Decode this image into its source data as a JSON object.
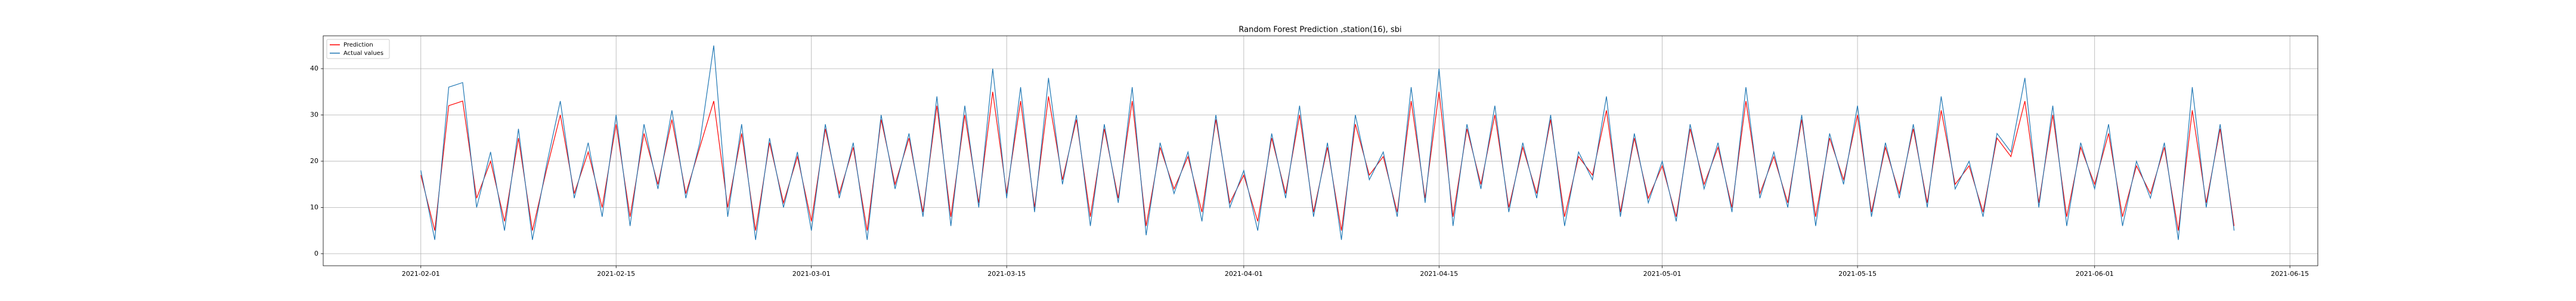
{
  "chart_data": {
    "type": "line",
    "title": "Random Forest Prediction ,station(16), sbi",
    "x": [
      "2021-02-01",
      "2021-02-02",
      "2021-02-03",
      "2021-02-04",
      "2021-02-05",
      "2021-02-06",
      "2021-02-07",
      "2021-02-08",
      "2021-02-09",
      "2021-02-10",
      "2021-02-11",
      "2021-02-12",
      "2021-02-13",
      "2021-02-14",
      "2021-02-15",
      "2021-02-16",
      "2021-02-17",
      "2021-02-18",
      "2021-02-19",
      "2021-02-20",
      "2021-02-21",
      "2021-02-22",
      "2021-02-23",
      "2021-02-24",
      "2021-02-25",
      "2021-02-26",
      "2021-02-27",
      "2021-02-28",
      "2021-03-01",
      "2021-03-02",
      "2021-03-03",
      "2021-03-04",
      "2021-03-05",
      "2021-03-06",
      "2021-03-07",
      "2021-03-08",
      "2021-03-09",
      "2021-03-10",
      "2021-03-11",
      "2021-03-12",
      "2021-03-13",
      "2021-03-14",
      "2021-03-15",
      "2021-03-16",
      "2021-03-17",
      "2021-03-18",
      "2021-03-19",
      "2021-03-20",
      "2021-03-21",
      "2021-03-22",
      "2021-03-23",
      "2021-03-24",
      "2021-03-25",
      "2021-03-26",
      "2021-03-27",
      "2021-03-28",
      "2021-03-29",
      "2021-03-30",
      "2021-03-31",
      "2021-04-01",
      "2021-04-02",
      "2021-04-03",
      "2021-04-04",
      "2021-04-05",
      "2021-04-06",
      "2021-04-07",
      "2021-04-08",
      "2021-04-09",
      "2021-04-10",
      "2021-04-11",
      "2021-04-12",
      "2021-04-13",
      "2021-04-14",
      "2021-04-15",
      "2021-04-16",
      "2021-04-17",
      "2021-04-18",
      "2021-04-19",
      "2021-04-20",
      "2021-04-21",
      "2021-04-22",
      "2021-04-23",
      "2021-04-24",
      "2021-04-25",
      "2021-04-26",
      "2021-04-27",
      "2021-04-28",
      "2021-04-29",
      "2021-04-30",
      "2021-05-01",
      "2021-05-02",
      "2021-05-03",
      "2021-05-04",
      "2021-05-05",
      "2021-05-06",
      "2021-05-07",
      "2021-05-08",
      "2021-05-09",
      "2021-05-10",
      "2021-05-11",
      "2021-05-12",
      "2021-05-13",
      "2021-05-14",
      "2021-05-15",
      "2021-05-16",
      "2021-05-17",
      "2021-05-18",
      "2021-05-19",
      "2021-05-20",
      "2021-05-21",
      "2021-05-22",
      "2021-05-23",
      "2021-05-24",
      "2021-05-25",
      "2021-05-26",
      "2021-05-27",
      "2021-05-28",
      "2021-05-29",
      "2021-05-30",
      "2021-05-31",
      "2021-06-01",
      "2021-06-02",
      "2021-06-03",
      "2021-06-04",
      "2021-06-05",
      "2021-06-06",
      "2021-06-07",
      "2021-06-08",
      "2021-06-09",
      "2021-06-10",
      "2021-06-11"
    ],
    "series": [
      {
        "name": "Prediction",
        "color": "#ff0000",
        "values": [
          17,
          5,
          32,
          33,
          12,
          20,
          7,
          25,
          5,
          18,
          30,
          13,
          22,
          10,
          28,
          8,
          26,
          15,
          29,
          13,
          23,
          33,
          10,
          26,
          5,
          24,
          11,
          21,
          7,
          27,
          13,
          23,
          5,
          29,
          15,
          25,
          9,
          32,
          8,
          30,
          11,
          35,
          13,
          33,
          10,
          34,
          16,
          29,
          8,
          27,
          12,
          33,
          6,
          23,
          14,
          21,
          9,
          29,
          11,
          17,
          7,
          25,
          13,
          30,
          9,
          23,
          5,
          28,
          17,
          21,
          9,
          33,
          12,
          35,
          8,
          27,
          15,
          30,
          10,
          23,
          13,
          29,
          8,
          21,
          17,
          31,
          9,
          25,
          12,
          19,
          8,
          27,
          15,
          23,
          10,
          33,
          13,
          21,
          11,
          29,
          8,
          25,
          16,
          30,
          9,
          23,
          13,
          27,
          11,
          31,
          15,
          19,
          9,
          25,
          21,
          33,
          11,
          30,
          8,
          23,
          15,
          26,
          8,
          19,
          13,
          23,
          5,
          31,
          11,
          27,
          6
        ]
      },
      {
        "name": "Actual values",
        "color": "#1f77b4",
        "values": [
          18,
          3,
          36,
          37,
          10,
          22,
          5,
          27,
          3,
          19,
          33,
          12,
          24,
          8,
          30,
          6,
          28,
          14,
          31,
          12,
          24,
          45,
          8,
          28,
          3,
          25,
          10,
          22,
          5,
          28,
          12,
          24,
          3,
          30,
          14,
          26,
          8,
          34,
          6,
          32,
          10,
          40,
          12,
          36,
          9,
          38,
          15,
          30,
          6,
          28,
          11,
          36,
          4,
          24,
          13,
          22,
          7,
          30,
          10,
          18,
          5,
          26,
          12,
          32,
          8,
          24,
          3,
          30,
          16,
          22,
          8,
          36,
          11,
          40,
          6,
          28,
          14,
          32,
          9,
          24,
          12,
          30,
          6,
          22,
          16,
          34,
          8,
          26,
          11,
          20,
          7,
          28,
          14,
          24,
          9,
          36,
          12,
          22,
          10,
          30,
          6,
          26,
          15,
          32,
          8,
          24,
          12,
          28,
          10,
          34,
          14,
          20,
          8,
          26,
          22,
          38,
          10,
          32,
          6,
          24,
          14,
          28,
          6,
          20,
          12,
          24,
          3,
          36,
          10,
          28,
          5
        ]
      }
    ],
    "xlim": [
      "2021-01-25",
      "2021-06-17"
    ],
    "xticks": [
      "2021-02-01",
      "2021-02-15",
      "2021-03-01",
      "2021-03-15",
      "2021-04-01",
      "2021-04-15",
      "2021-05-01",
      "2021-05-15",
      "2021-06-01",
      "2021-06-15"
    ],
    "ylim": [
      -2.6,
      47.1
    ],
    "yticks": [
      0,
      10,
      20,
      30,
      40
    ],
    "grid": true,
    "legend": "upper left"
  }
}
